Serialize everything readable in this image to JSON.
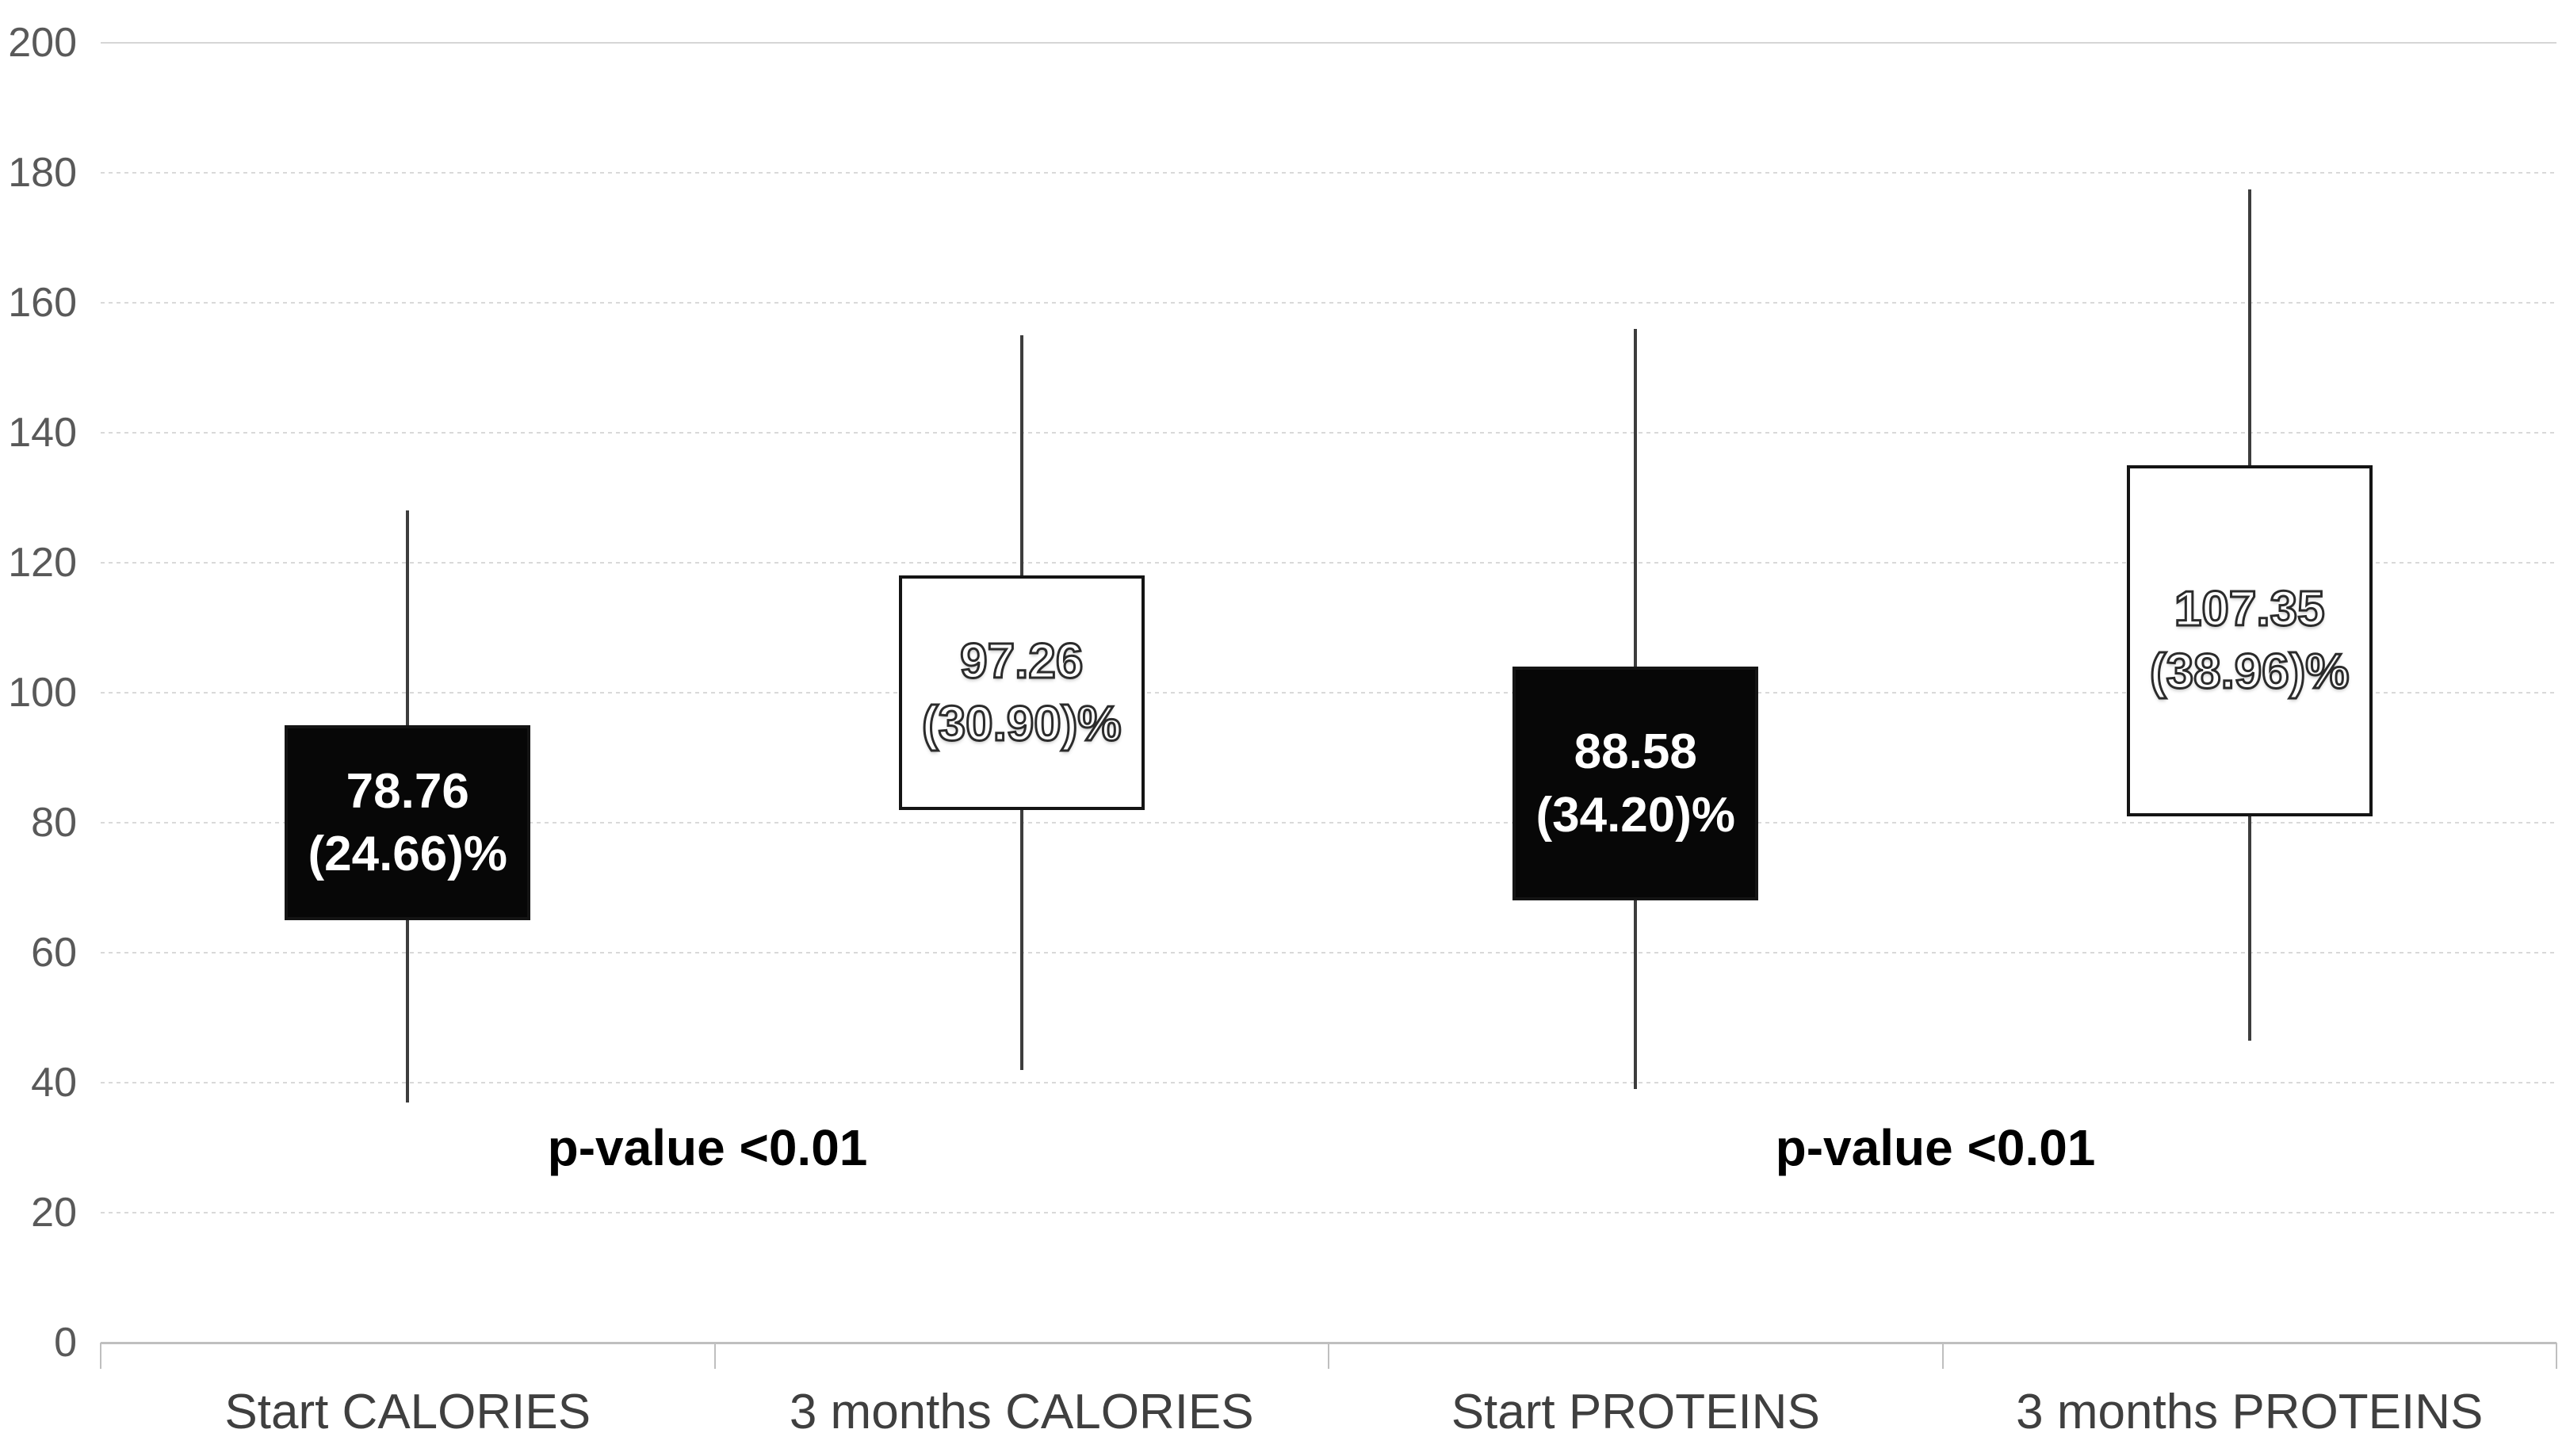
{
  "chart_data": {
    "type": "box",
    "title": "",
    "xlabel": "",
    "ylabel": "",
    "ylim": [
      0,
      200
    ],
    "ytick_step": 20,
    "ytick_labels": [
      "0",
      "20",
      "40",
      "60",
      "80",
      "100",
      "120",
      "140",
      "160",
      "180",
      "200"
    ],
    "grid": "horizontal-dotted",
    "legend": "none",
    "categories": [
      "Start CALORIES",
      "3 months CALORIES",
      "Start PROTEINS",
      "3 months PROTEINS"
    ],
    "series": [
      {
        "category": "Start CALORIES",
        "whisker_min": 37,
        "q1": 65,
        "q3": 95,
        "whisker_max": 128,
        "mean": 78.76,
        "label_value": "78.76",
        "label_percent": "(24.66)%",
        "fill": "black"
      },
      {
        "category": "3 months CALORIES",
        "whisker_min": 42,
        "q1": 82,
        "q3": 118,
        "whisker_max": 155,
        "mean": 97.26,
        "label_value": "97.26",
        "label_percent": "(30.90)%",
        "fill": "white"
      },
      {
        "category": "Start PROTEINS",
        "whisker_min": 39,
        "q1": 68,
        "q3": 104,
        "whisker_max": 156,
        "mean": 88.58,
        "label_value": "88.58",
        "label_percent": "(34.20)%",
        "fill": "black"
      },
      {
        "category": "3 months PROTEINS",
        "whisker_min": 46.5,
        "q1": 81,
        "q3": 135,
        "whisker_max": 177.5,
        "mean": 107.35,
        "label_value": "107.35",
        "label_percent": "(38.96)%",
        "fill": "white"
      }
    ],
    "annotations": [
      {
        "text": "p-value <0.01",
        "between_categories": [
          0,
          1
        ],
        "y_value": 30
      },
      {
        "text": "p-value <0.01",
        "between_categories": [
          2,
          3
        ],
        "y_value": 30
      }
    ],
    "colors": {
      "background": "#ffffff",
      "box_fill_black": "#070707",
      "box_fill_white": "#ffffff",
      "box_border": "#141414",
      "whisker": "#3d3d3d",
      "gridline": "#d9d9d9",
      "axis_line": "#bfbfbf",
      "ytick_label": "#595959",
      "category_label": "#3f3f3f",
      "annotation_text": "#000000"
    }
  }
}
